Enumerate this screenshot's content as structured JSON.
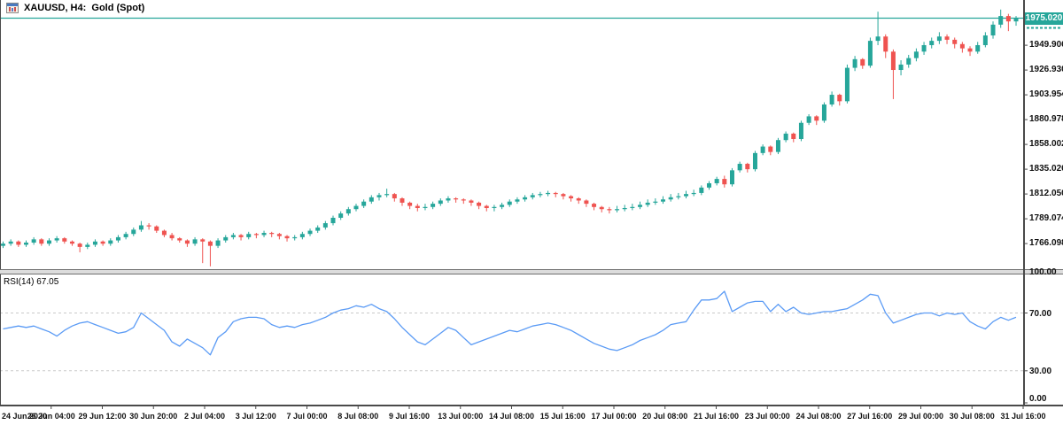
{
  "header": {
    "title": "XAUUSD, H4:  Gold (Spot)"
  },
  "colors": {
    "up": "#26a69a",
    "down": "#ef5350",
    "price_line": "#26a69a",
    "price_label_bg": "#26a69a",
    "price_label_text": "#ffffff",
    "rsi_line": "#5b9bf5",
    "level_dash": "#c9c9c9",
    "axis": "#4a4a4a",
    "text": "#111111"
  },
  "price_axis": {
    "current_label": "1975.020",
    "ticks": [
      "1949.906",
      "1926.930",
      "1903.954",
      "1880.978",
      "1858.002",
      "1835.026",
      "1812.050",
      "1789.074",
      "1766.098"
    ]
  },
  "rsi": {
    "label": "RSI(14) 67.05",
    "axis_ticks": [
      "100.00",
      "70.00",
      "30.00",
      "0.00"
    ]
  },
  "chart_data": [
    {
      "type": "candlestick",
      "title": "XAUUSD H4 Gold (Spot)",
      "ylim": [
        1743,
        1985
      ],
      "current_price": 1975.02,
      "y_ticks": [
        1949.906,
        1926.93,
        1903.954,
        1880.978,
        1858.002,
        1835.026,
        1812.05,
        1789.074,
        1766.098
      ],
      "grid": "off",
      "time_labels": [
        "24 Jun 2020",
        "26 Jun 04:00",
        "29 Jun 12:00",
        "30 Jun 20:00",
        "2 Jul 04:00",
        "3 Jul 12:00",
        "7 Jul 00:00",
        "8 Jul 08:00",
        "9 Jul 16:00",
        "13 Jul 00:00",
        "14 Jul 08:00",
        "15 Jul 16:00",
        "17 Jul 00:00",
        "20 Jul 08:00",
        "21 Jul 16:00",
        "23 Jul 00:00",
        "24 Jul 08:00",
        "27 Jul 16:00",
        "29 Jul 00:00",
        "30 Jul 08:00",
        "31 Jul 16:00"
      ],
      "ohlc": [
        [
          1764,
          1768,
          1762,
          1766
        ],
        [
          1766,
          1770,
          1764,
          1768
        ],
        [
          1768,
          1769,
          1763,
          1765
        ],
        [
          1765,
          1769,
          1763,
          1767
        ],
        [
          1767,
          1772,
          1765,
          1770
        ],
        [
          1770,
          1771,
          1764,
          1766
        ],
        [
          1766,
          1771,
          1764,
          1769
        ],
        [
          1769,
          1773,
          1767,
          1771
        ],
        [
          1771,
          1772,
          1766,
          1768
        ],
        [
          1768,
          1769,
          1764,
          1766
        ],
        [
          1766,
          1767,
          1758,
          1763
        ],
        [
          1763,
          1767,
          1761,
          1765
        ],
        [
          1765,
          1770,
          1763,
          1768
        ],
        [
          1768,
          1769,
          1764,
          1766
        ],
        [
          1766,
          1771,
          1764,
          1769
        ],
        [
          1769,
          1774,
          1767,
          1772
        ],
        [
          1772,
          1777,
          1770,
          1775
        ],
        [
          1775,
          1781,
          1773,
          1779
        ],
        [
          1779,
          1787,
          1777,
          1783
        ],
        [
          1783,
          1785,
          1779,
          1782
        ],
        [
          1782,
          1783,
          1776,
          1778
        ],
        [
          1778,
          1779,
          1772,
          1774
        ],
        [
          1774,
          1776,
          1769,
          1771
        ],
        [
          1771,
          1772,
          1767,
          1769
        ],
        [
          1769,
          1770,
          1763,
          1766
        ],
        [
          1766,
          1772,
          1764,
          1770
        ],
        [
          1770,
          1771,
          1748,
          1768
        ],
        [
          1768,
          1769,
          1745,
          1764
        ],
        [
          1764,
          1771,
          1762,
          1769
        ],
        [
          1769,
          1774,
          1767,
          1772
        ],
        [
          1772,
          1776,
          1770,
          1774
        ],
        [
          1774,
          1775,
          1769,
          1772
        ],
        [
          1772,
          1777,
          1770,
          1775
        ],
        [
          1775,
          1776,
          1771,
          1774
        ],
        [
          1774,
          1778,
          1772,
          1776
        ],
        [
          1776,
          1777,
          1772,
          1775
        ],
        [
          1775,
          1776,
          1770,
          1773
        ],
        [
          1773,
          1774,
          1768,
          1771
        ],
        [
          1771,
          1774,
          1769,
          1772
        ],
        [
          1772,
          1777,
          1770,
          1775
        ],
        [
          1775,
          1780,
          1773,
          1778
        ],
        [
          1778,
          1783,
          1776,
          1781
        ],
        [
          1781,
          1787,
          1779,
          1785
        ],
        [
          1785,
          1792,
          1783,
          1790
        ],
        [
          1790,
          1796,
          1788,
          1794
        ],
        [
          1794,
          1800,
          1792,
          1798
        ],
        [
          1798,
          1803,
          1796,
          1801
        ],
        [
          1801,
          1807,
          1799,
          1805
        ],
        [
          1805,
          1811,
          1803,
          1809
        ],
        [
          1809,
          1813,
          1806,
          1811
        ],
        [
          1811,
          1817,
          1809,
          1812
        ],
        [
          1812,
          1813,
          1805,
          1808
        ],
        [
          1808,
          1809,
          1801,
          1804
        ],
        [
          1804,
          1805,
          1798,
          1801
        ],
        [
          1801,
          1803,
          1796,
          1799
        ],
        [
          1799,
          1803,
          1797,
          1800
        ],
        [
          1800,
          1805,
          1798,
          1803
        ],
        [
          1803,
          1808,
          1801,
          1806
        ],
        [
          1806,
          1810,
          1804,
          1808
        ],
        [
          1808,
          1809,
          1804,
          1807
        ],
        [
          1807,
          1808,
          1803,
          1806
        ],
        [
          1806,
          1807,
          1801,
          1804
        ],
        [
          1804,
          1805,
          1798,
          1801
        ],
        [
          1801,
          1802,
          1796,
          1799
        ],
        [
          1799,
          1802,
          1796,
          1800
        ],
        [
          1800,
          1804,
          1798,
          1802
        ],
        [
          1802,
          1807,
          1800,
          1805
        ],
        [
          1805,
          1809,
          1803,
          1807
        ],
        [
          1807,
          1811,
          1805,
          1809
        ],
        [
          1809,
          1813,
          1807,
          1811
        ],
        [
          1811,
          1814,
          1809,
          1812
        ],
        [
          1812,
          1815,
          1810,
          1813
        ],
        [
          1813,
          1814,
          1809,
          1812
        ],
        [
          1812,
          1813,
          1807,
          1810
        ],
        [
          1810,
          1811,
          1805,
          1808
        ],
        [
          1808,
          1809,
          1803,
          1806
        ],
        [
          1806,
          1807,
          1800,
          1803
        ],
        [
          1803,
          1804,
          1797,
          1800
        ],
        [
          1800,
          1801,
          1795,
          1798
        ],
        [
          1798,
          1800,
          1794,
          1797
        ],
        [
          1797,
          1801,
          1795,
          1798
        ],
        [
          1798,
          1802,
          1796,
          1799
        ],
        [
          1799,
          1803,
          1797,
          1800
        ],
        [
          1800,
          1805,
          1798,
          1802
        ],
        [
          1802,
          1807,
          1800,
          1804
        ],
        [
          1804,
          1808,
          1802,
          1805
        ],
        [
          1805,
          1810,
          1803,
          1807
        ],
        [
          1807,
          1812,
          1805,
          1809
        ],
        [
          1809,
          1813,
          1807,
          1810
        ],
        [
          1810,
          1815,
          1808,
          1812
        ],
        [
          1812,
          1816,
          1810,
          1813
        ],
        [
          1813,
          1820,
          1811,
          1818
        ],
        [
          1818,
          1824,
          1816,
          1822
        ],
        [
          1822,
          1828,
          1820,
          1826
        ],
        [
          1826,
          1829,
          1818,
          1821
        ],
        [
          1821,
          1836,
          1819,
          1834
        ],
        [
          1834,
          1842,
          1832,
          1840
        ],
        [
          1840,
          1841,
          1832,
          1835
        ],
        [
          1835,
          1852,
          1833,
          1850
        ],
        [
          1850,
          1858,
          1848,
          1856
        ],
        [
          1856,
          1857,
          1848,
          1851
        ],
        [
          1851,
          1864,
          1849,
          1862
        ],
        [
          1862,
          1870,
          1860,
          1868
        ],
        [
          1868,
          1869,
          1860,
          1863
        ],
        [
          1863,
          1880,
          1861,
          1878
        ],
        [
          1878,
          1886,
          1876,
          1884
        ],
        [
          1884,
          1885,
          1876,
          1880
        ],
        [
          1880,
          1897,
          1878,
          1895
        ],
        [
          1895,
          1907,
          1893,
          1904
        ],
        [
          1904,
          1905,
          1894,
          1898
        ],
        [
          1898,
          1932,
          1896,
          1929
        ],
        [
          1929,
          1940,
          1926,
          1937
        ],
        [
          1937,
          1938,
          1928,
          1931
        ],
        [
          1931,
          1957,
          1929,
          1954
        ],
        [
          1954,
          1981,
          1950,
          1958
        ],
        [
          1958,
          1960,
          1938,
          1944
        ],
        [
          1944,
          1946,
          1900,
          1927
        ],
        [
          1927,
          1936,
          1922,
          1932
        ],
        [
          1932,
          1941,
          1929,
          1938
        ],
        [
          1938,
          1947,
          1935,
          1944
        ],
        [
          1944,
          1953,
          1941,
          1950
        ],
        [
          1950,
          1957,
          1947,
          1954
        ],
        [
          1954,
          1962,
          1951,
          1958
        ],
        [
          1958,
          1960,
          1951,
          1955
        ],
        [
          1955,
          1957,
          1947,
          1951
        ],
        [
          1951,
          1953,
          1943,
          1947
        ],
        [
          1947,
          1949,
          1940,
          1944
        ],
        [
          1944,
          1953,
          1942,
          1950
        ],
        [
          1950,
          1962,
          1948,
          1959
        ],
        [
          1959,
          1972,
          1956,
          1969
        ],
        [
          1969,
          1983,
          1966,
          1977
        ],
        [
          1977,
          1979,
          1963,
          1972
        ],
        [
          1972,
          1977,
          1968,
          1975.02
        ]
      ]
    },
    {
      "type": "line",
      "name": "RSI(14)",
      "current_value": 67.05,
      "ylim": [
        0,
        100
      ],
      "levels": [
        70,
        30
      ],
      "values": [
        59,
        60,
        61,
        60,
        61,
        59,
        57,
        54,
        58,
        61,
        63,
        64,
        62,
        60,
        58,
        56,
        57,
        60,
        70,
        66,
        62,
        58,
        50,
        47,
        52,
        49,
        46,
        41,
        53,
        57,
        64,
        66,
        67,
        67,
        66,
        62,
        60,
        61,
        60,
        62,
        63,
        65,
        67,
        70,
        72,
        73,
        75,
        74,
        76,
        73,
        71,
        66,
        60,
        55,
        50,
        48,
        52,
        56,
        60,
        58,
        53,
        48,
        50,
        52,
        54,
        56,
        58,
        57,
        59,
        61,
        62,
        63,
        62,
        60,
        58,
        55,
        52,
        49,
        47,
        45,
        44,
        46,
        48,
        51,
        53,
        55,
        58,
        62,
        63,
        64,
        72,
        79,
        79,
        80,
        85,
        71,
        74,
        77,
        78,
        78,
        71,
        76,
        71,
        74,
        70,
        69,
        70,
        71,
        71,
        72,
        73,
        76,
        79,
        83,
        82,
        70,
        63,
        65,
        67,
        69,
        70,
        70,
        68,
        70,
        69,
        70,
        64,
        61,
        59,
        64,
        67,
        65,
        67.05
      ]
    }
  ]
}
